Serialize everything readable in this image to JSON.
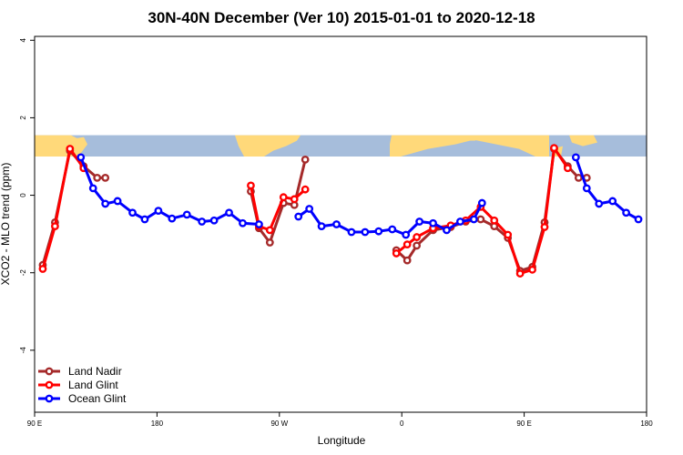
{
  "chart_data": {
    "type": "line",
    "title": "30N-40N December (Ver 10)   2015-01-01 to 2020-12-18",
    "xlabel": "Longitude",
    "ylabel": "XCO2 - MLO trend (ppm)",
    "xlim": [
      90,
      540
    ],
    "ylim": [
      -5.6,
      4.1
    ],
    "x_ticks": [
      {
        "value": 90,
        "label": "90 E"
      },
      {
        "value": 180,
        "label": "180"
      },
      {
        "value": 270,
        "label": "90 W"
      },
      {
        "value": 360,
        "label": "0"
      },
      {
        "value": 450,
        "label": "90 E"
      },
      {
        "value": 540,
        "label": "180"
      }
    ],
    "y_ticks": [
      {
        "value": 4,
        "label": "4"
      },
      {
        "value": 2,
        "label": "2"
      },
      {
        "value": 0,
        "label": "0"
      },
      {
        "value": -2,
        "label": "-2"
      },
      {
        "value": -4,
        "label": "-4"
      }
    ],
    "map_strip": {
      "ymin": 1.0,
      "ymax": 1.55,
      "ocean_color": "#a6bddb",
      "land_color": "#ffd97a"
    },
    "legend": {
      "position": "bottom-left"
    },
    "series": [
      {
        "name": "Land Nadir",
        "color": "#a52a2a",
        "segments": [
          [
            [
              96,
              -1.8
            ],
            [
              105,
              -0.7
            ],
            [
              116,
              1.15
            ],
            [
              126,
              0.75
            ],
            [
              136,
              0.45
            ],
            [
              142,
              0.45
            ]
          ],
          [
            [
              249,
              0.1
            ],
            [
              255,
              -0.85
            ],
            [
              263,
              -1.22
            ],
            [
              273,
              -0.2
            ],
            [
              281,
              -0.25
            ],
            [
              289,
              0.92
            ]
          ],
          [
            [
              356,
              -1.42
            ],
            [
              364,
              -1.68
            ],
            [
              371,
              -1.3
            ],
            [
              383,
              -0.9
            ],
            [
              396,
              -0.82
            ],
            [
              407,
              -0.68
            ],
            [
              418,
              -0.62
            ],
            [
              428,
              -0.8
            ],
            [
              438,
              -1.1
            ],
            [
              447,
              -1.95
            ],
            [
              456,
              -1.85
            ],
            [
              465,
              -0.7
            ],
            [
              472,
              1.2
            ],
            [
              482,
              0.75
            ],
            [
              490,
              0.45
            ],
            [
              496,
              0.45
            ]
          ]
        ]
      },
      {
        "name": "Land Glint",
        "color": "#ff0000",
        "segments": [
          [
            [
              96,
              -1.9
            ],
            [
              105,
              -0.8
            ],
            [
              116,
              1.2
            ],
            [
              126,
              0.7
            ]
          ],
          [
            [
              249,
              0.25
            ],
            [
              255,
              -0.8
            ],
            [
              263,
              -0.9
            ],
            [
              273,
              -0.05
            ],
            [
              281,
              -0.1
            ],
            [
              289,
              0.15
            ]
          ],
          [
            [
              356,
              -1.5
            ],
            [
              364,
              -1.27
            ],
            [
              371,
              -1.08
            ],
            [
              383,
              -0.85
            ],
            [
              396,
              -0.78
            ],
            [
              407,
              -0.65
            ],
            [
              418,
              -0.3
            ],
            [
              428,
              -0.65
            ],
            [
              438,
              -1.02
            ],
            [
              447,
              -2.02
            ],
            [
              456,
              -1.92
            ],
            [
              465,
              -0.82
            ],
            [
              472,
              1.22
            ],
            [
              482,
              0.7
            ]
          ]
        ]
      },
      {
        "name": "Ocean Glint",
        "color": "#0000ff",
        "segments": [
          [
            [
              124,
              0.98
            ],
            [
              133,
              0.18
            ],
            [
              142,
              -0.22
            ],
            [
              151,
              -0.15
            ],
            [
              162,
              -0.45
            ],
            [
              171,
              -0.62
            ],
            [
              181,
              -0.4
            ],
            [
              191,
              -0.6
            ],
            [
              202,
              -0.5
            ],
            [
              213,
              -0.68
            ],
            [
              222,
              -0.65
            ],
            [
              233,
              -0.45
            ],
            [
              243,
              -0.72
            ],
            [
              255,
              -0.75
            ]
          ],
          [
            [
              284,
              -0.55
            ],
            [
              292,
              -0.35
            ],
            [
              301,
              -0.8
            ],
            [
              312,
              -0.75
            ],
            [
              323,
              -0.95
            ],
            [
              333,
              -0.95
            ],
            [
              343,
              -0.93
            ],
            [
              353,
              -0.88
            ],
            [
              363,
              -1.02
            ],
            [
              373,
              -0.68
            ],
            [
              383,
              -0.72
            ],
            [
              393,
              -0.9
            ],
            [
              403,
              -0.68
            ],
            [
              413,
              -0.62
            ],
            [
              419,
              -0.2
            ]
          ],
          [
            [
              488,
              0.98
            ],
            [
              496,
              0.18
            ],
            [
              505,
              -0.22
            ],
            [
              515,
              -0.15
            ],
            [
              525,
              -0.45
            ],
            [
              534,
              -0.62
            ]
          ]
        ]
      }
    ]
  }
}
